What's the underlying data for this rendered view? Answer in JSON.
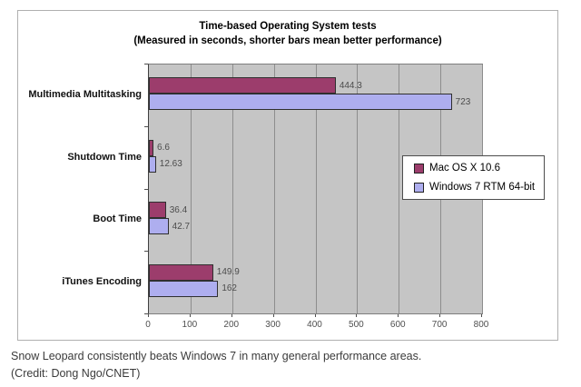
{
  "chart_data": {
    "type": "bar",
    "orientation": "horizontal",
    "title": "Time-based Operating System tests",
    "subtitle": "(Measured in seconds, shorter bars mean better performance)",
    "categories": [
      "Multimedia Multitasking",
      "Shutdown Time",
      "Boot Time",
      "iTunes Encoding"
    ],
    "series": [
      {
        "name": "Mac OS X 10.6",
        "color": "#9c3d6c",
        "values": [
          444.3,
          6.6,
          36.4,
          149.9
        ],
        "value_labels": [
          "444.3",
          "6.6",
          "36.4",
          "149.9"
        ]
      },
      {
        "name": "Windows 7 RTM 64-bit",
        "color": "#aeaeef",
        "values": [
          723,
          12.63,
          42.7,
          162
        ],
        "value_labels": [
          "723",
          "12.63",
          "42.7",
          "162"
        ]
      }
    ],
    "xlim": [
      0,
      800
    ],
    "x_ticks": [
      0,
      100,
      200,
      300,
      400,
      500,
      600,
      700,
      800
    ],
    "grid": true,
    "legend_position": "middle-right",
    "plot_bg": "#c5c5c5"
  },
  "caption": {
    "line1": "Snow Leopard consistently beats Windows 7 in many general performance areas.",
    "line2": "(Credit: Dong Ngo/CNET)"
  }
}
